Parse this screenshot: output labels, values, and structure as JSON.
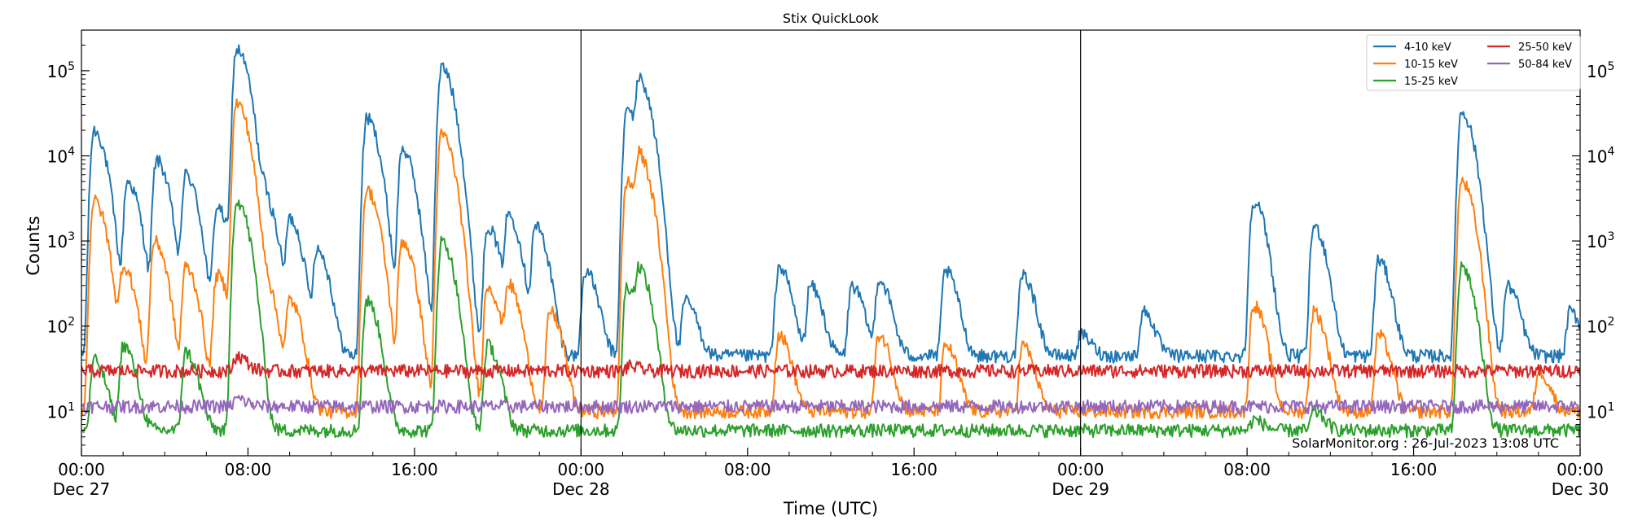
{
  "chart_data": {
    "type": "line",
    "title": "Stix QuickLook",
    "xlabel": "Time (UTC)",
    "ylabel": "Counts",
    "yscale": "log",
    "ylim": [
      3,
      300000
    ],
    "xlim_hours": [
      0,
      72
    ],
    "grid": false,
    "legend_placement": "top-right",
    "annotation": "SolarMonitor.org : 26-Jul-2023 13:08 UTC",
    "x_ticks": [
      {
        "hour": 0,
        "line1": "00:00",
        "line2": "Dec 27"
      },
      {
        "hour": 8,
        "line1": "08:00",
        "line2": ""
      },
      {
        "hour": 16,
        "line1": "16:00",
        "line2": ""
      },
      {
        "hour": 24,
        "line1": "00:00",
        "line2": "Dec 28"
      },
      {
        "hour": 32,
        "line1": "08:00",
        "line2": ""
      },
      {
        "hour": 40,
        "line1": "16:00",
        "line2": ""
      },
      {
        "hour": 48,
        "line1": "00:00",
        "line2": "Dec 29"
      },
      {
        "hour": 56,
        "line1": "08:00",
        "line2": ""
      },
      {
        "hour": 64,
        "line1": "16:00",
        "line2": ""
      },
      {
        "hour": 72,
        "line1": "00:00",
        "line2": "Dec 30"
      }
    ],
    "day_boundaries_hours": [
      24,
      48
    ],
    "y_ticks": [
      {
        "exp": 1,
        "base": "10",
        "sup": "1"
      },
      {
        "exp": 2,
        "base": "10",
        "sup": "2"
      },
      {
        "exp": 3,
        "base": "10",
        "sup": "3"
      },
      {
        "exp": 4,
        "base": "10",
        "sup": "4"
      },
      {
        "exp": 5,
        "base": "10",
        "sup": "5"
      }
    ],
    "series": [
      {
        "name": "4-10 keV",
        "color": "#1f77b4",
        "baseline": 45,
        "events": [
          [
            0.6,
            20000
          ],
          [
            2.2,
            5000
          ],
          [
            3.6,
            9000
          ],
          [
            5,
            6000
          ],
          [
            6.5,
            2500
          ],
          [
            7.45,
            180000
          ],
          [
            8.8,
            3000
          ],
          [
            10,
            1800
          ],
          [
            11.3,
            800
          ],
          [
            13.7,
            28000
          ],
          [
            15.4,
            12000
          ],
          [
            17.3,
            110000
          ],
          [
            19.5,
            1500
          ],
          [
            20.5,
            2000
          ],
          [
            21.8,
            1500
          ],
          [
            24.2,
            450
          ],
          [
            26.2,
            35000
          ],
          [
            26.8,
            70000
          ],
          [
            29,
            200
          ],
          [
            33.5,
            500
          ],
          [
            35,
            300
          ],
          [
            37,
            300
          ],
          [
            38.3,
            350
          ],
          [
            41.5,
            450
          ],
          [
            45.2,
            400
          ],
          [
            48,
            80
          ],
          [
            51,
            150
          ],
          [
            56.3,
            3000
          ],
          [
            59.2,
            1500
          ],
          [
            62.3,
            600
          ],
          [
            66.3,
            33000
          ],
          [
            68.5,
            300
          ],
          [
            71.5,
            150
          ]
        ]
      },
      {
        "name": "10-15 keV",
        "color": "#ff7f0e",
        "baseline": 10,
        "events": [
          [
            0.6,
            3000
          ],
          [
            2,
            500
          ],
          [
            3.5,
            1000
          ],
          [
            5,
            500
          ],
          [
            6.5,
            400
          ],
          [
            7.45,
            42000
          ],
          [
            8.8,
            300
          ],
          [
            10,
            200
          ],
          [
            13.7,
            4000
          ],
          [
            15.4,
            1000
          ],
          [
            17.3,
            18000
          ],
          [
            19.5,
            300
          ],
          [
            20.5,
            300
          ],
          [
            22.5,
            150
          ],
          [
            26.2,
            5000
          ],
          [
            26.8,
            9000
          ],
          [
            33.5,
            80
          ],
          [
            38.3,
            80
          ],
          [
            41.5,
            60
          ],
          [
            45.2,
            60
          ],
          [
            56.3,
            180
          ],
          [
            59.2,
            150
          ],
          [
            62.3,
            80
          ],
          [
            66.3,
            5000
          ],
          [
            70,
            30
          ]
        ]
      },
      {
        "name": "15-25 keV",
        "color": "#2ca02c",
        "baseline": 6,
        "events": [
          [
            0.6,
            40
          ],
          [
            2,
            60
          ],
          [
            5,
            50
          ],
          [
            7.45,
            3000
          ],
          [
            13.7,
            200
          ],
          [
            17.3,
            1000
          ],
          [
            19.5,
            60
          ],
          [
            26.2,
            300
          ],
          [
            26.8,
            400
          ],
          [
            56.3,
            8
          ],
          [
            59.2,
            10
          ],
          [
            66.3,
            500
          ]
        ]
      },
      {
        "name": "25-50 keV",
        "color": "#d62728",
        "baseline": 30,
        "events": [
          [
            7.45,
            45
          ],
          [
            26.3,
            34
          ]
        ]
      },
      {
        "name": "50-84 keV",
        "color": "#9467bd",
        "baseline": 11.5,
        "events": [
          [
            7.45,
            14
          ]
        ]
      }
    ]
  }
}
